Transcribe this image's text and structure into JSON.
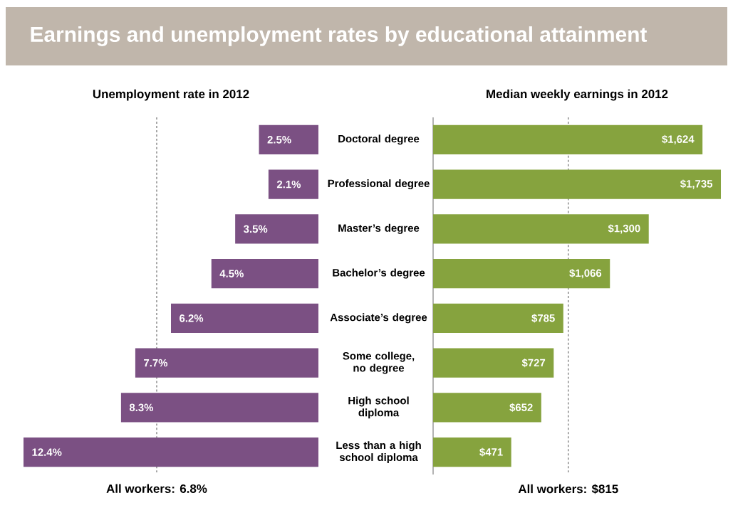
{
  "chart_data": [
    {
      "type": "bar",
      "orientation": "horizontal",
      "title": "Earnings and unemployment rates by educational attainment",
      "subtitle": "Unemployment rate in 2012",
      "categories": [
        "Doctoral degree",
        "Professional degree",
        "Master’s degree",
        "Bachelor’s degree",
        "Associate’s degree",
        "Some college, no degree",
        "High school diploma",
        "Less than a high school diploma"
      ],
      "values": [
        2.5,
        2.1,
        3.5,
        4.5,
        6.2,
        7.7,
        8.3,
        12.4
      ],
      "value_labels": [
        "2.5%",
        "2.1%",
        "3.5%",
        "4.5%",
        "6.2%",
        "7.7%",
        "8.3%",
        "12.4%"
      ],
      "color": "#7b5083",
      "xlim": [
        12.4,
        0
      ],
      "ref_lines": [
        {
          "axis": "x",
          "value": 6.8,
          "label": "All workers: 6.8%",
          "color": "#8c8c8c",
          "line_style": "dashed"
        }
      ]
    },
    {
      "type": "bar",
      "orientation": "horizontal",
      "title": "Median weekly earnings in 2012",
      "categories": [
        null,
        null,
        null,
        null,
        null,
        null,
        null,
        null
      ],
      "values": [
        1624,
        1735,
        1300,
        1066,
        785,
        727,
        652,
        471
      ],
      "value_labels": [
        "$1,624",
        "$1,735",
        "$1,300",
        "$1,066",
        "$785",
        "$727",
        "$652",
        "$471"
      ],
      "color": "#86a33e",
      "xlim": [
        0,
        1735
      ],
      "ref_lines": [
        {
          "axis": "x",
          "value": 815,
          "label": "All workers: $815",
          "color": "#8c8c8c",
          "line_style": "dashed"
        }
      ]
    }
  ]
}
